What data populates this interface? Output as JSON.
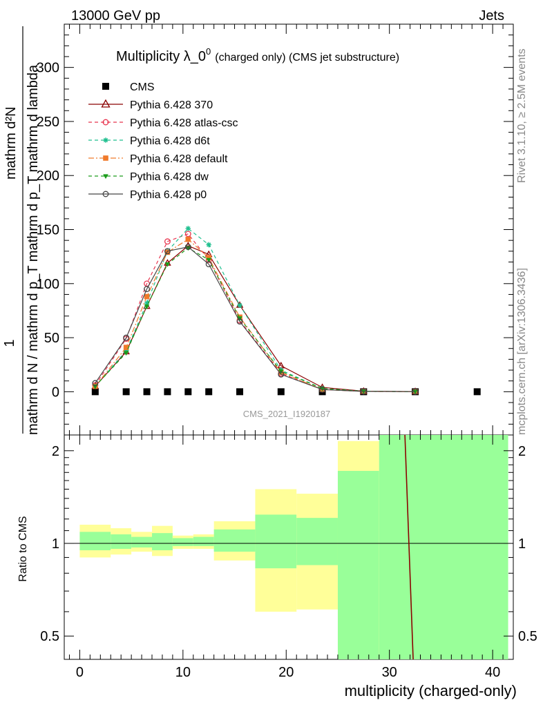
{
  "header": {
    "left": "13000 GeV pp",
    "right": "Jets"
  },
  "side_labels": {
    "rivet": "Rivet 3.1.10, ≥ 2.5M events",
    "mcplots": "mcplots.cern.ch [arXiv:1306.3436]"
  },
  "chart_data": [
    {
      "type": "scatter",
      "title": "Multiplicity λ_0",
      "title_sup": "0",
      "subtitle": "(charged only) (CMS jet substructure)",
      "watermark": "CMS_2021_I1920187",
      "ylabel_numerator": "1",
      "ylabel_denominator": "mathrm d N / mathrm d p_T mathrm d p_T mathrm d lambda",
      "ylabel_right": "mathrm d²N",
      "ylim": [
        -40,
        340
      ],
      "yticks": [
        0,
        50,
        100,
        150,
        200,
        250,
        300
      ],
      "xlim": [
        -1.5,
        42
      ],
      "legend_position": "top-left",
      "series": [
        {
          "name": "CMS",
          "color": "#000000",
          "marker": "square",
          "line": "none",
          "x": [
            1.5,
            4.5,
            6.5,
            8.5,
            10.5,
            12.5,
            15.5,
            19.5,
            23.5,
            27.5,
            32.5,
            38.5
          ],
          "y": [
            0,
            0,
            0,
            0,
            0,
            0,
            0,
            0,
            0,
            0,
            0,
            0
          ]
        },
        {
          "name": "Pythia 6.428 370",
          "color": "#8b0000",
          "marker": "triangle-open",
          "line": "solid",
          "x": [
            1.5,
            4.5,
            6.5,
            8.5,
            10.5,
            12.5,
            15.5,
            19.5,
            23.5,
            27.5,
            32.5
          ],
          "y": [
            5,
            37,
            79,
            119,
            135,
            127,
            80,
            24,
            4,
            0.5,
            0.2
          ]
        },
        {
          "name": "Pythia 6.428 atlas-csc",
          "color": "#e8344e",
          "marker": "circle-open",
          "line": "dashed",
          "x": [
            1.5,
            4.5,
            6.5,
            8.5,
            10.5,
            12.5,
            15.5,
            19.5,
            23.5,
            27.5,
            32.5
          ],
          "y": [
            6,
            49,
            100,
            139,
            146,
            122,
            66,
            17,
            2,
            0.3,
            0.1
          ]
        },
        {
          "name": "Pythia 6.428 d6t",
          "color": "#1fbf8f",
          "marker": "star",
          "line": "dashed",
          "x": [
            1.5,
            4.5,
            6.5,
            8.5,
            10.5,
            12.5,
            15.5,
            19.5,
            23.5,
            27.5,
            32.5
          ],
          "y": [
            5,
            38,
            82,
            130,
            151,
            136,
            80,
            20,
            3,
            0.4,
            0.1
          ]
        },
        {
          "name": "Pythia 6.428 default",
          "color": "#f07a2b",
          "marker": "square",
          "line": "dashdot",
          "x": [
            1.5,
            4.5,
            6.5,
            8.5,
            10.5,
            12.5,
            15.5,
            19.5,
            23.5,
            27.5,
            32.5
          ],
          "y": [
            5,
            41,
            88,
            129,
            141,
            124,
            69,
            18,
            2,
            0.3,
            0.1
          ]
        },
        {
          "name": "Pythia 6.428 dw",
          "color": "#1a9c1a",
          "marker": "triangle-down",
          "line": "dashed",
          "x": [
            1.5,
            4.5,
            6.5,
            8.5,
            10.5,
            12.5,
            15.5,
            19.5,
            23.5,
            27.5,
            32.5
          ],
          "y": [
            5,
            36,
            79,
            118,
            133,
            122,
            68,
            19,
            3,
            0.4,
            0.1
          ]
        },
        {
          "name": "Pythia 6.428 p0",
          "color": "#444444",
          "marker": "circle-open",
          "line": "solid",
          "x": [
            1.5,
            4.5,
            6.5,
            8.5,
            10.5,
            12.5,
            15.5,
            19.5,
            23.5,
            27.5,
            32.5
          ],
          "y": [
            8,
            50,
            95,
            130,
            134,
            118,
            65,
            16,
            2,
            0.3,
            0.1
          ]
        }
      ]
    },
    {
      "type": "area",
      "ylabel": "Ratio to CMS",
      "xlabel": "multiplicity (charged-only)",
      "xlim": [
        -1.5,
        42
      ],
      "xticks": [
        0,
        10,
        20,
        30,
        40
      ],
      "ylim": [
        0.42,
        2.25
      ],
      "yscale": "log",
      "yticks": [
        0.5,
        1,
        2
      ],
      "colors": {
        "outer_band": "#ffff99",
        "inner_band": "#99ff99",
        "ratio_line": "#8b0000"
      },
      "bins": [
        {
          "x0": 0,
          "x1": 3,
          "outer": [
            0.9,
            1.15
          ],
          "inner": [
            0.95,
            1.09
          ]
        },
        {
          "x0": 3,
          "x1": 5,
          "outer": [
            0.92,
            1.12
          ],
          "inner": [
            0.96,
            1.07
          ]
        },
        {
          "x0": 5,
          "x1": 7,
          "outer": [
            0.94,
            1.09
          ],
          "inner": [
            0.97,
            1.05
          ]
        },
        {
          "x0": 7,
          "x1": 9,
          "outer": [
            0.91,
            1.14
          ],
          "inner": [
            0.95,
            1.08
          ]
        },
        {
          "x0": 9,
          "x1": 11,
          "outer": [
            0.96,
            1.06
          ],
          "inner": [
            0.98,
            1.04
          ]
        },
        {
          "x0": 11,
          "x1": 13,
          "outer": [
            0.96,
            1.07
          ],
          "inner": [
            0.98,
            1.05
          ]
        },
        {
          "x0": 13,
          "x1": 17,
          "outer": [
            0.88,
            1.18
          ],
          "inner": [
            0.94,
            1.11
          ]
        },
        {
          "x0": 17,
          "x1": 21,
          "outer": [
            0.6,
            1.5
          ],
          "inner": [
            0.83,
            1.24
          ]
        },
        {
          "x0": 21,
          "x1": 25,
          "outer": [
            0.61,
            1.45
          ],
          "inner": [
            0.85,
            1.21
          ]
        },
        {
          "x0": 25,
          "x1": 29,
          "outer": [
            0.42,
            2.15
          ],
          "inner": [
            0.42,
            1.72
          ]
        },
        {
          "x0": 29,
          "x1": 41.5,
          "outer": [
            0.42,
            2.25
          ],
          "inner": [
            0.42,
            2.25
          ]
        }
      ],
      "reference_line": 1,
      "ratio_curve": {
        "x": [
          31.5,
          32.3
        ],
        "y": [
          2.25,
          0.42
        ]
      }
    }
  ]
}
